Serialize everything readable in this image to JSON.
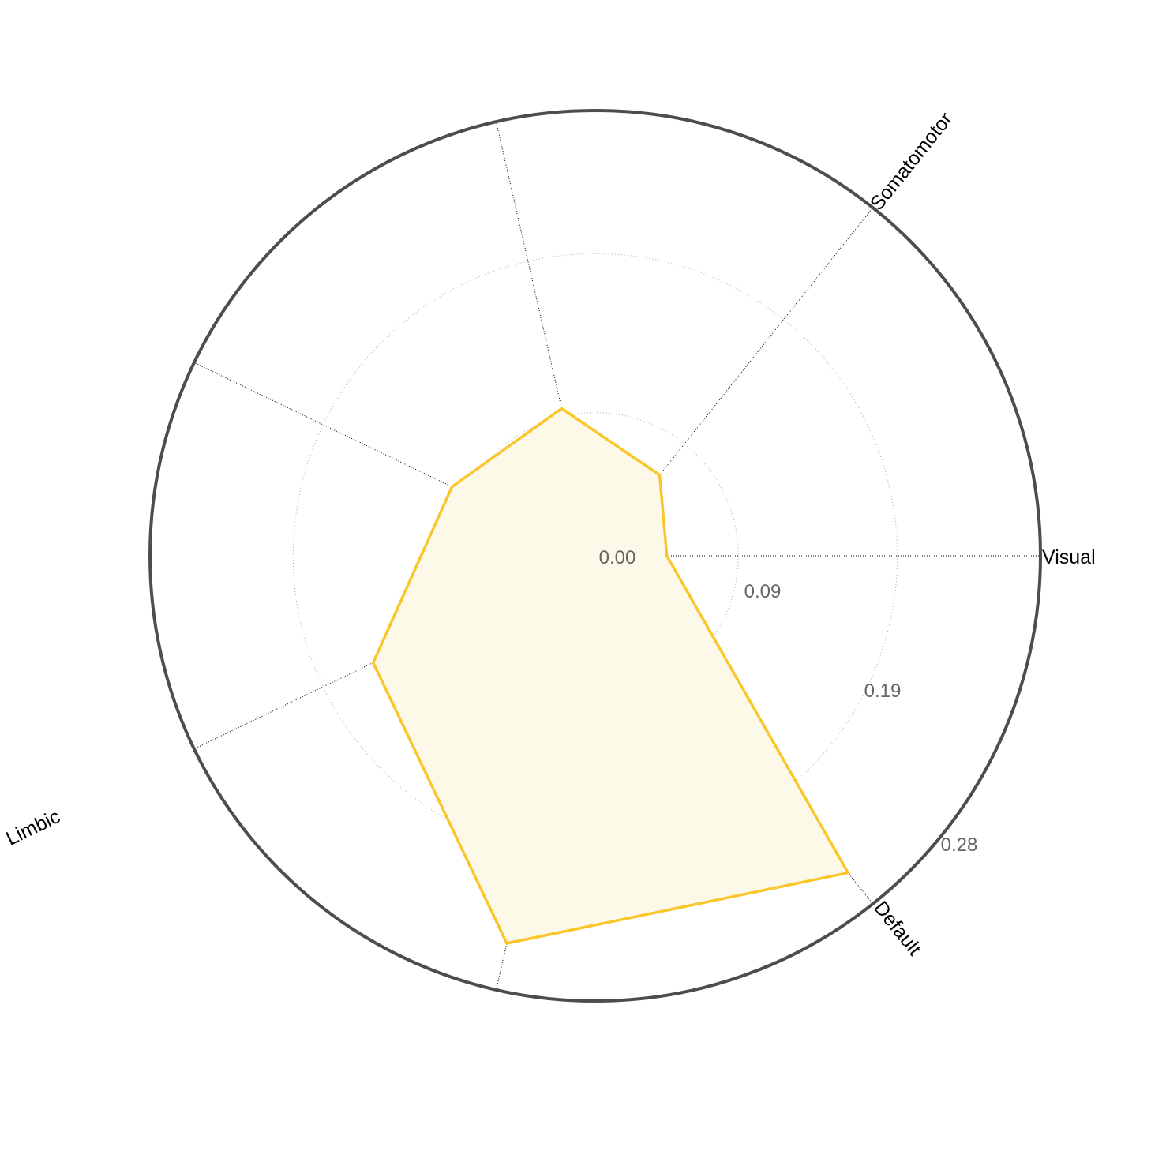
{
  "chart_data": {
    "type": "radar",
    "title": "",
    "axes": [
      "Visual",
      "Somatomotor",
      "",
      "",
      "Limbic",
      "",
      "Default"
    ],
    "series": [
      {
        "values": [
          0.045,
          0.065,
          0.095,
          0.1,
          0.155,
          0.25,
          0.255
        ],
        "color": "#f9c62b",
        "fill": "#fdf9e8"
      }
    ],
    "rlim": [
      0,
      0.28
    ],
    "rticks": [
      "0.00",
      "0.09",
      "0.19",
      "0.28"
    ],
    "grid": true,
    "colors": {
      "outer_ring": "#4d4d4d",
      "grid": "#aaaaaa",
      "spokes": "#000000",
      "tick_text": "#666666"
    }
  }
}
